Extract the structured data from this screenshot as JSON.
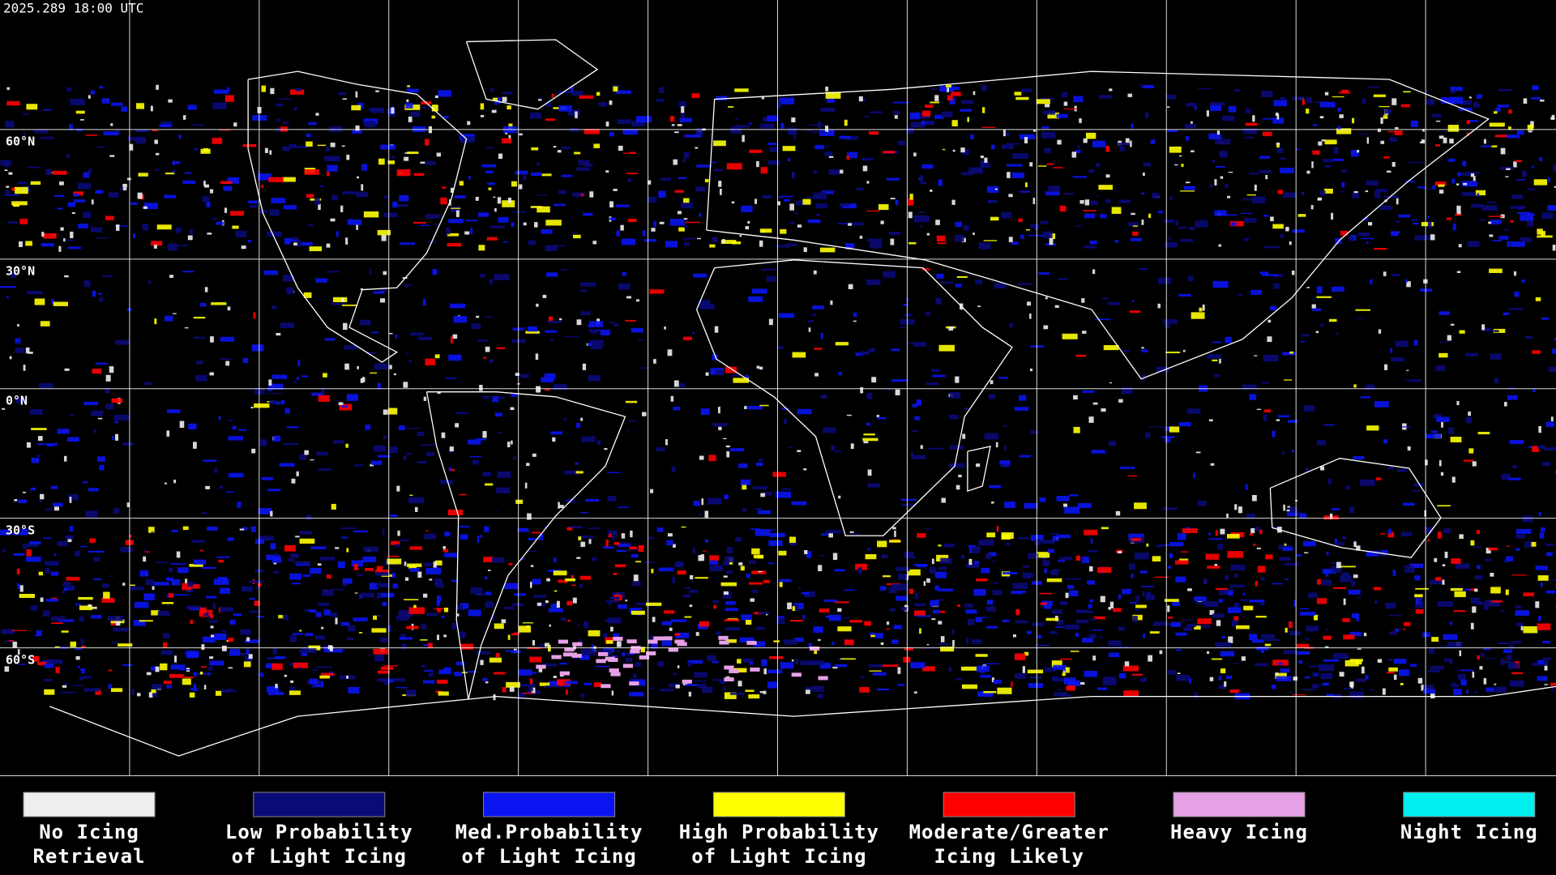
{
  "header": {
    "timestamp": "2025.289 18:00 UTC"
  },
  "latitude_labels": [
    "60°N",
    "30°N",
    "0°N",
    "30°S",
    "60°S"
  ],
  "legend": [
    {
      "lines": [
        "No Icing",
        "Retrieval"
      ],
      "color": "#eeeeee"
    },
    {
      "lines": [
        "Low Probability",
        "of Light Icing"
      ],
      "color": "#0a0a78"
    },
    {
      "lines": [
        "Med.Probability",
        "of Light Icing"
      ],
      "color": "#0a14f0"
    },
    {
      "lines": [
        "High Probability",
        "of Light Icing"
      ],
      "color": "#ffff00"
    },
    {
      "lines": [
        "Moderate/Greater",
        "Icing Likely"
      ],
      "color": "#ff0000"
    },
    {
      "lines": [
        "Heavy Icing"
      ],
      "color": "#e6a0e6"
    },
    {
      "lines": [
        "Night Icing"
      ],
      "color": "#00f0f0"
    }
  ]
}
